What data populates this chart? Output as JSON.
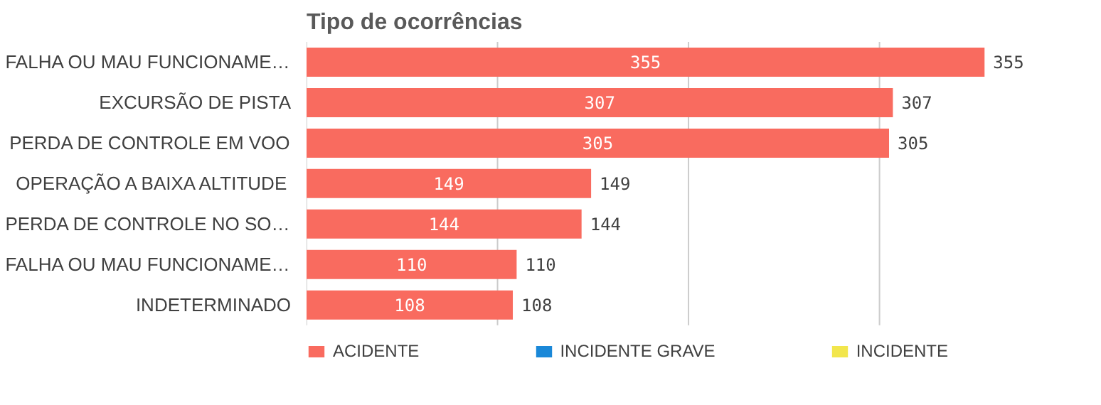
{
  "chart_data": {
    "type": "bar",
    "orientation": "horizontal",
    "stacked": true,
    "title": "Tipo de ocorrências",
    "categories": [
      "FALHA OU MAU FUNCIONAME…",
      "EXCURSÃO DE PISTA",
      "PERDA DE CONTROLE EM VOO",
      "OPERAÇÃO A BAIXA ALTITUDE",
      "PERDA DE CONTROLE NO SO…",
      "FALHA OU MAU FUNCIONAME…",
      "INDETERMINADO"
    ],
    "series": [
      {
        "name": "ACIDENTE",
        "color": "#f96b5f",
        "values": [
          355,
          307,
          305,
          149,
          144,
          110,
          108
        ]
      },
      {
        "name": "INCIDENTE GRAVE",
        "color": "#1a88d8",
        "values": [
          null,
          null,
          null,
          null,
          null,
          null,
          null
        ]
      },
      {
        "name": "INCIDENTE",
        "color": "#f2e64c",
        "values": [
          null,
          null,
          null,
          null,
          null,
          null,
          null
        ]
      }
    ],
    "totals": [
      "355",
      "307",
      "305",
      "149",
      "144",
      "110",
      "108"
    ],
    "data_labels": true,
    "xticks": [
      {
        "value": 0,
        "label": null
      },
      {
        "value": 100,
        "label": null
      },
      {
        "value": 200,
        "label": null
      },
      {
        "value": 300,
        "label": null
      }
    ],
    "tick_labels": "y",
    "grid": "x",
    "legend": "bottom"
  }
}
